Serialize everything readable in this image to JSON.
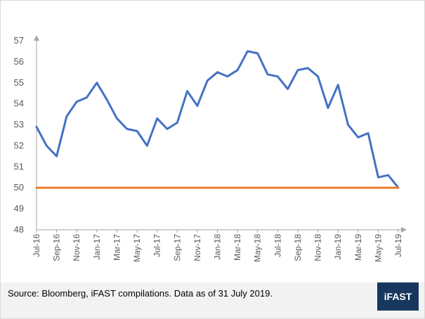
{
  "chart_data": {
    "type": "line",
    "title": "",
    "xlabel": "",
    "ylabel": "",
    "ylim": [
      48,
      57
    ],
    "yticks": [
      48,
      49,
      50,
      51,
      52,
      53,
      54,
      55,
      56,
      57
    ],
    "grid": false,
    "x": [
      "Jul-16",
      "Aug-16",
      "Sep-16",
      "Oct-16",
      "Nov-16",
      "Dec-16",
      "Jan-17",
      "Feb-17",
      "Mar-17",
      "Apr-17",
      "May-17",
      "Jun-17",
      "Jul-17",
      "Aug-17",
      "Sep-17",
      "Oct-17",
      "Nov-17",
      "Dec-17",
      "Jan-18",
      "Feb-18",
      "Mar-18",
      "Apr-18",
      "May-18",
      "Jun-18",
      "Jul-18",
      "Aug-18",
      "Sep-18",
      "Oct-18",
      "Nov-18",
      "Dec-18",
      "Jan-19",
      "Feb-19",
      "Mar-19",
      "Apr-19",
      "May-19",
      "Jun-19",
      "Jul-19"
    ],
    "xtick_labels": [
      "Jul-16",
      "Sep-16",
      "Nov-16",
      "Jan-17",
      "Mar-17",
      "May-17",
      "Jul-17",
      "Sep-17",
      "Nov-17",
      "Jan-18",
      "Mar-18",
      "May-18",
      "Jul-18",
      "Sep-18",
      "Nov-18",
      "Jan-19",
      "Mar-19",
      "May-19",
      "Jul-19"
    ],
    "series": [
      {
        "color": "#4472c4",
        "values": [
          52.9,
          52.0,
          51.5,
          53.4,
          54.1,
          54.3,
          55.0,
          54.2,
          53.3,
          52.8,
          52.7,
          52.0,
          53.3,
          52.8,
          53.1,
          54.6,
          53.9,
          55.1,
          55.5,
          55.3,
          55.6,
          56.5,
          56.4,
          55.4,
          55.3,
          54.7,
          55.6,
          55.7,
          55.3,
          53.8,
          54.9,
          53.0,
          52.4,
          52.6,
          50.5,
          50.6,
          50.0
        ]
      },
      {
        "color": "#ed7d31",
        "values": [
          50,
          50,
          50,
          50,
          50,
          50,
          50,
          50,
          50,
          50,
          50,
          50,
          50,
          50,
          50,
          50,
          50,
          50,
          50,
          50,
          50,
          50,
          50,
          50,
          50,
          50,
          50,
          50,
          50,
          50,
          50,
          50,
          50,
          50,
          50,
          50,
          50
        ]
      }
    ]
  },
  "footer": {
    "source": "Source: Bloomberg, iFAST compilations. Data as of 31 July 2019.",
    "logo": "iFAST"
  }
}
